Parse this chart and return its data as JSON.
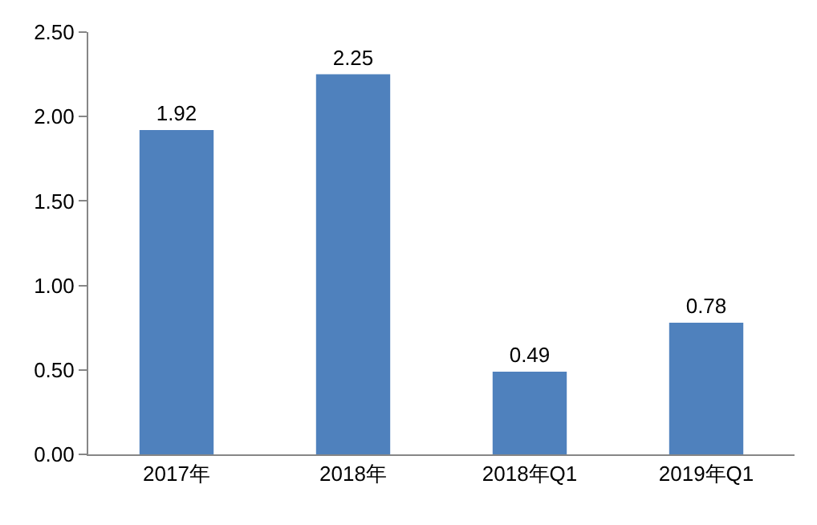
{
  "chart_data": {
    "type": "bar",
    "categories": [
      "2017年",
      "2018年",
      "2018年Q1",
      "2019年Q1"
    ],
    "values": [
      1.92,
      2.25,
      0.49,
      0.78
    ],
    "color": "#4f81bd",
    "data_labels": true,
    "ylim": [
      0,
      2.5
    ],
    "yticks": [
      {
        "value": 0,
        "label": "0.00"
      },
      {
        "value": 0.5,
        "label": "0.50"
      },
      {
        "value": 1,
        "label": "1.00"
      },
      {
        "value": 1.5,
        "label": "1.50"
      },
      {
        "value": 2,
        "label": "2.00"
      },
      {
        "value": 2.5,
        "label": "2.50"
      }
    ],
    "grid": false
  }
}
